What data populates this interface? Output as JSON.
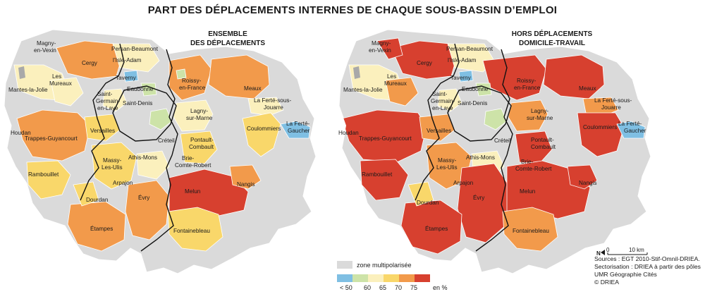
{
  "title": "PART DES DÉPLACEMENTS INTERNES DE CHAQUE SOUS-BASSIN D’EMPLOI",
  "maps": [
    {
      "subtitle_line1": "ENSEMBLE",
      "subtitle_line2": "DES DÉPLACEMENTS"
    },
    {
      "subtitle_line1": "HORS DÉPLACEMENTS",
      "subtitle_line2": "DOMICILE-TRAVAIL"
    }
  ],
  "colors": {
    "lt50": "#7fbfe3",
    "c50_60": "#cde3a8",
    "c60_65": "#fbf0bd",
    "c65_70": "#f9d76a",
    "c70_75": "#f29a4b",
    "c75p": "#d7402f",
    "multipolar": "#dadada",
    "boundary": "#111111",
    "water": "#a9a9a9"
  },
  "places": {
    "magny": "Magny-",
    "vexin": "en-Vexin",
    "persan": "Persan-Beaumont",
    "isle": "l’Isle-Adam",
    "cergy": "Cergy",
    "les": "Les",
    "mureaux": "Mureaux",
    "mantes": "Mantes-la-Jolie",
    "taverny": "Taverny",
    "eaubonne": "Eaubonne",
    "roissy1": "Roissy-",
    "roissy2": "en-France",
    "meaux": "Meaux",
    "stgermain1": "Saint-",
    "stgermain2": "Germain-",
    "stgermain3": "en-Laye",
    "stdenis": "Saint-Denis",
    "lagny1": "Lagny-",
    "lagny2": "sur-Marne",
    "ferte1": "La Ferté-sous-",
    "ferte2": "Jouarre",
    "houdan": "Houdan",
    "trappes": "Trappes-Guyancourt",
    "versailles": "Versailles",
    "creteil": "Créteil",
    "coulommiers": "Coulommiers",
    "gaucher1": "La Ferté-",
    "gaucher2": "Gaucher",
    "pontault1": "Pontault-",
    "pontault2": "Combault",
    "rambouillet": "Rambouillet",
    "massy1": "Massy-",
    "massy2": "Les-Ulis",
    "athis": "Athis-Mons",
    "brie1": "Brie-",
    "brie2": "Comte-Robert",
    "arpajon": "Arpajon",
    "nangis": "Nangis",
    "dourdan": "Dourdan",
    "evry": "Évry",
    "melun": "Melun",
    "etampes": "Étampes",
    "fontainebleau": "Fontainebleau"
  },
  "legend": {
    "zone_label": "zone multipolarisée",
    "breaks": [
      "< 50",
      "60",
      "65",
      "70",
      "75",
      "en %"
    ],
    "first_break": "50"
  },
  "scale": {
    "north": "N",
    "zero": "0",
    "label": "10 km"
  },
  "sources": [
    "Sources : EGT 2010-Stif-Omnil-DRIEA.",
    "Sectorisation : DRIEA à partir des pôles",
    "UMR Géographie Cités",
    "© DRIEA"
  ]
}
